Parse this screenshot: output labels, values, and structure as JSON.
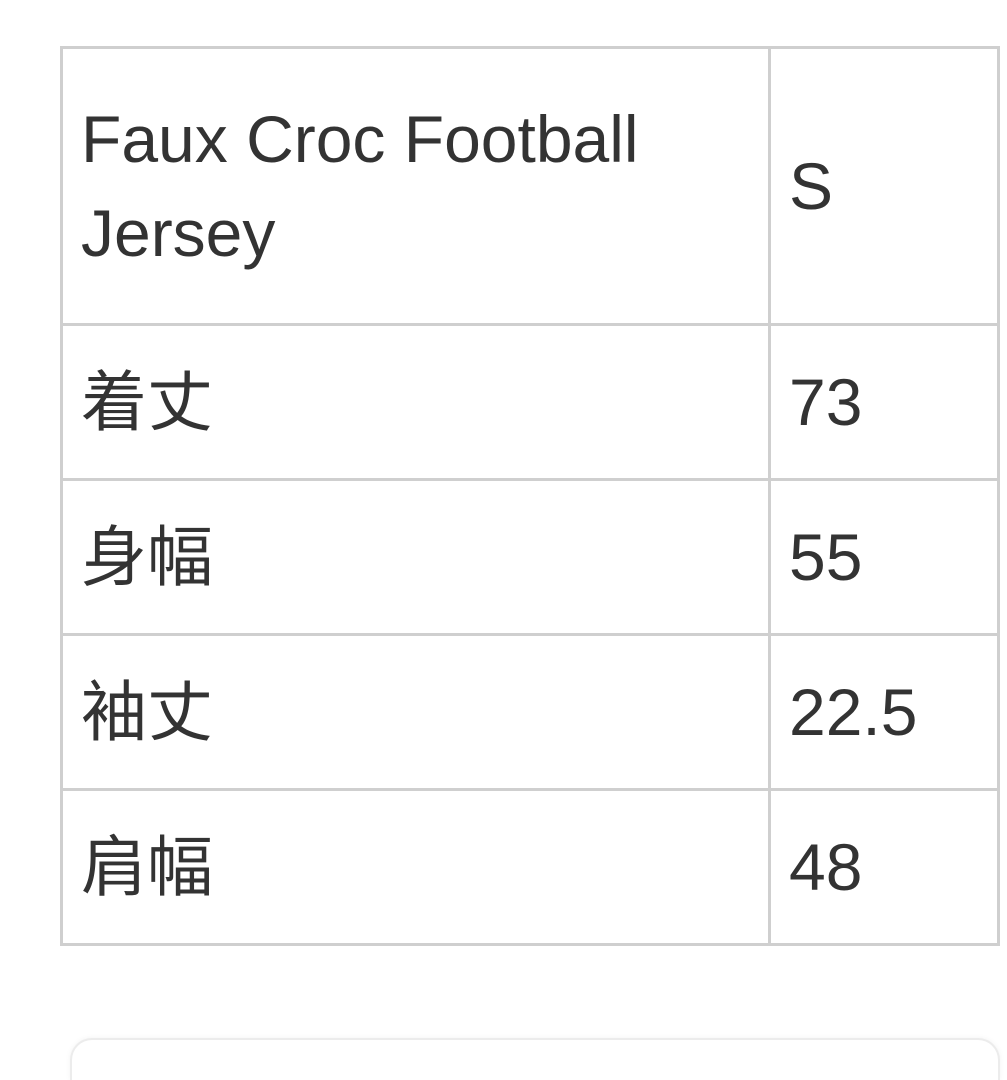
{
  "table": {
    "header": [
      "Faux Croc Football Jersey",
      "S"
    ],
    "rows": [
      [
        "着丈",
        "73"
      ],
      [
        "身幅",
        "55"
      ],
      [
        "袖丈",
        "22.5"
      ],
      [
        "肩幅",
        "48"
      ]
    ]
  }
}
